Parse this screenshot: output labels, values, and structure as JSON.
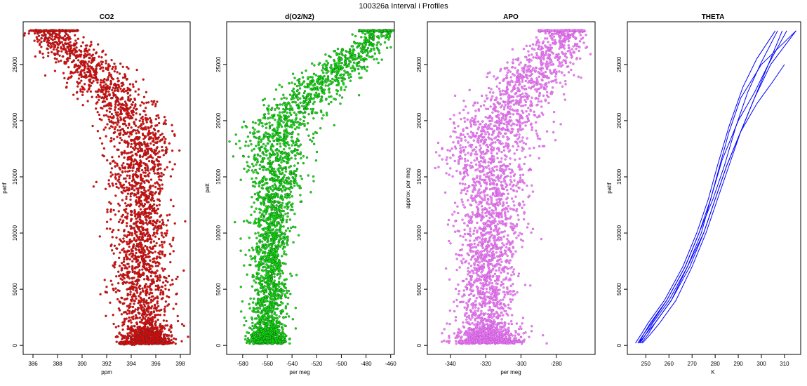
{
  "figure": {
    "title": "100326a   Interval i Profiles"
  },
  "chart_data": [
    {
      "id": "co2",
      "type": "scatter",
      "title": "CO2",
      "xlabel": "ppm",
      "ylabel": "pattf",
      "xlim": [
        385.2,
        398.8
      ],
      "ylim": [
        -800,
        28800
      ],
      "xticks": [
        386,
        388,
        390,
        392,
        394,
        396,
        398
      ],
      "yticks": [
        0,
        5000,
        10000,
        15000,
        20000,
        25000
      ],
      "color": "#ff0000",
      "outline": "#333333",
      "profile": [
        {
          "y": 150,
          "x": 395.4,
          "spread": 1.1
        },
        {
          "y": 1000,
          "x": 395.2,
          "spread": 1.0
        },
        {
          "y": 3000,
          "x": 395.0,
          "spread": 1.1
        },
        {
          "y": 5000,
          "x": 394.9,
          "spread": 1.2
        },
        {
          "y": 7500,
          "x": 394.7,
          "spread": 1.1
        },
        {
          "y": 10000,
          "x": 395.0,
          "spread": 1.1
        },
        {
          "y": 12500,
          "x": 394.8,
          "spread": 1.1
        },
        {
          "y": 15000,
          "x": 394.4,
          "spread": 1.2
        },
        {
          "y": 17500,
          "x": 395.0,
          "spread": 1.3
        },
        {
          "y": 19000,
          "x": 394.6,
          "spread": 1.4
        },
        {
          "y": 21000,
          "x": 393.5,
          "spread": 1.4
        },
        {
          "y": 23000,
          "x": 391.8,
          "spread": 1.4
        },
        {
          "y": 25000,
          "x": 390.4,
          "spread": 1.3
        },
        {
          "y": 27000,
          "x": 388.2,
          "spread": 1.2
        },
        {
          "y": 28000,
          "x": 387.2,
          "spread": 1.0
        }
      ],
      "top_band": {
        "y": 28000,
        "x": [
          385.8,
          389.7
        ]
      },
      "base_band": {
        "y": 200,
        "x": [
          393.0,
          397.2
        ]
      },
      "seed": 11
    },
    {
      "id": "do2n2",
      "type": "scatter",
      "title": "d(O2/N2)",
      "xlabel": "per meg",
      "ylabel": "patt",
      "xlim": [
        -593,
        -457
      ],
      "ylim": [
        -800,
        28800
      ],
      "xticks": [
        -580,
        -560,
        -540,
        -520,
        -500,
        -480,
        -460
      ],
      "yticks": [
        0,
        5000,
        10000,
        15000,
        20000,
        25000
      ],
      "color": "#00ee00",
      "outline": "#333333",
      "profile": [
        {
          "y": 150,
          "x": -560,
          "spread": 8
        },
        {
          "y": 1000,
          "x": -560,
          "spread": 7
        },
        {
          "y": 3000,
          "x": -559,
          "spread": 7
        },
        {
          "y": 5000,
          "x": -557,
          "spread": 8
        },
        {
          "y": 7500,
          "x": -558,
          "spread": 7
        },
        {
          "y": 10000,
          "x": -557,
          "spread": 8
        },
        {
          "y": 12500,
          "x": -554,
          "spread": 9
        },
        {
          "y": 15000,
          "x": -552,
          "spread": 11
        },
        {
          "y": 17500,
          "x": -556,
          "spread": 14
        },
        {
          "y": 19000,
          "x": -552,
          "spread": 13
        },
        {
          "y": 21000,
          "x": -538,
          "spread": 13
        },
        {
          "y": 23000,
          "x": -522,
          "spread": 12
        },
        {
          "y": 25000,
          "x": -497,
          "spread": 11
        },
        {
          "y": 27000,
          "x": -478,
          "spread": 8
        },
        {
          "y": 28000,
          "x": -468,
          "spread": 6
        }
      ],
      "top_band": {
        "y": 28000,
        "x": [
          -486,
          -458
        ]
      },
      "base_band": {
        "y": 350,
        "x": [
          -569,
          -545
        ]
      },
      "seed": 23
    },
    {
      "id": "apo",
      "type": "scatter",
      "title": "APO",
      "xlabel": "per meg",
      "ylabel": "approx. per meg",
      "xlim": [
        -353,
        -258
      ],
      "ylim": [
        -800,
        28800
      ],
      "xticks": [
        -340,
        -320,
        -300,
        -280
      ],
      "yticks": [
        0,
        5000,
        10000,
        15000,
        20000,
        25000
      ],
      "color": "#ee82ee",
      "outline": "#aa44cc",
      "profile": [
        {
          "y": 150,
          "x": -320,
          "spread": 10
        },
        {
          "y": 1000,
          "x": -320,
          "spread": 9
        },
        {
          "y": 3000,
          "x": -320,
          "spread": 8
        },
        {
          "y": 5000,
          "x": -319,
          "spread": 8
        },
        {
          "y": 7500,
          "x": -319,
          "spread": 8
        },
        {
          "y": 10000,
          "x": -318,
          "spread": 9
        },
        {
          "y": 12500,
          "x": -317,
          "spread": 9
        },
        {
          "y": 15000,
          "x": -318,
          "spread": 11
        },
        {
          "y": 17500,
          "x": -320,
          "spread": 13
        },
        {
          "y": 19000,
          "x": -315,
          "spread": 13
        },
        {
          "y": 21000,
          "x": -308,
          "spread": 12
        },
        {
          "y": 23000,
          "x": -298,
          "spread": 12
        },
        {
          "y": 25000,
          "x": -288,
          "spread": 10
        },
        {
          "y": 27000,
          "x": -280,
          "spread": 8
        },
        {
          "y": 28000,
          "x": -274,
          "spread": 6
        }
      ],
      "top_band": {
        "y": 28000,
        "x": [
          -290,
          -264
        ]
      },
      "base_band": {
        "y": 350,
        "x": [
          -335,
          -298
        ]
      },
      "seed": 37
    },
    {
      "id": "theta",
      "type": "line",
      "title": "THETA",
      "xlabel": "K",
      "ylabel": "pattf",
      "xlim": [
        242,
        317
      ],
      "ylim": [
        -800,
        28800
      ],
      "xticks": [
        250,
        260,
        270,
        280,
        290,
        300,
        310
      ],
      "yticks": [
        0,
        5000,
        10000,
        15000,
        20000,
        25000
      ],
      "color": "#0000ff",
      "series": [
        {
          "x": [
            245.5,
            248,
            251,
            258,
            266,
            272,
            277,
            281,
            286,
            292,
            298,
            306
          ],
          "y": [
            200,
            1000,
            2000,
            4000,
            7000,
            10000,
            13000,
            16000,
            19500,
            23000,
            25500,
            28000
          ]
        },
        {
          "x": [
            247,
            249,
            252,
            259,
            267,
            273,
            278,
            283,
            290,
            297,
            303,
            311
          ],
          "y": [
            200,
            1000,
            2000,
            4000,
            7000,
            10000,
            13000,
            16500,
            20000,
            22500,
            25000,
            28000
          ]
        },
        {
          "x": [
            248,
            251,
            254,
            261,
            268,
            274,
            278,
            282,
            286,
            291,
            300,
            315
          ],
          "y": [
            200,
            1000,
            2000,
            4000,
            7000,
            10000,
            13000,
            16000,
            19000,
            22000,
            25000,
            28000
          ]
        },
        {
          "x": [
            247.5,
            250,
            253,
            260,
            268,
            275,
            280,
            285,
            291,
            297,
            303,
            309
          ],
          "y": [
            200,
            1000,
            2000,
            4000,
            7000,
            10000,
            13000,
            16000,
            19000,
            22000,
            25000,
            28000
          ]
        },
        {
          "x": [
            248.5,
            252,
            256,
            263,
            270,
            276,
            281,
            286,
            291,
            297,
            304,
            315
          ],
          "y": [
            200,
            1000,
            2000,
            4000,
            7000,
            10000,
            13000,
            16000,
            19000,
            22000,
            25000,
            28000
          ]
        },
        {
          "x": [
            246.5,
            249,
            252.5,
            259,
            267,
            273,
            279,
            284,
            289,
            294,
            300,
            307
          ],
          "y": [
            200,
            1000,
            2000,
            4000,
            7000,
            10000,
            13000,
            16000,
            19500,
            22500,
            25200,
            28000
          ]
        },
        {
          "x": [
            247,
            250,
            254,
            261,
            269,
            275,
            280,
            285,
            291,
            298,
            305,
            310
          ],
          "y": [
            200,
            1000,
            2000,
            4000,
            7000,
            10000,
            13000,
            16000,
            19000,
            21500,
            23500,
            25000
          ]
        }
      ]
    }
  ]
}
